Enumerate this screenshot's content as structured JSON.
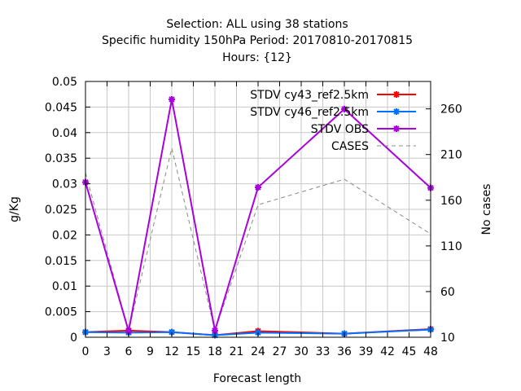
{
  "chart_data": {
    "type": "line",
    "title_lines": [
      "Selection: ALL using    38 stations",
      "Specific humidity 150hPa   Period: 20170810-20170815",
      "Hours: {12}"
    ],
    "xlabel": "Forecast length",
    "ylabel": "g/Kg",
    "y2label": "No cases",
    "xlim": [
      0,
      48
    ],
    "ylim": [
      0,
      0.05
    ],
    "y2lim": [
      10,
      290
    ],
    "x_ticks": [
      "0",
      "3",
      "6",
      "9",
      "12",
      "15",
      "18",
      "21",
      "24",
      "27",
      "30",
      "33",
      "36",
      "39",
      "42",
      "45",
      "48"
    ],
    "y_ticks": [
      "0",
      "0.005",
      "0.01",
      "0.015",
      "0.02",
      "0.025",
      "0.03",
      "0.035",
      "0.04",
      "0.045",
      "0.05"
    ],
    "y2_ticks": [
      "10",
      "60",
      "110",
      "160",
      "210",
      "260"
    ],
    "grid": true,
    "legend_position": "top-right",
    "x": [
      0,
      6,
      12,
      18,
      24,
      36,
      48
    ],
    "series": [
      {
        "name": "STDV cy43_ref2.5km",
        "axis": "y",
        "color": "#ff0000",
        "marker": "x-star",
        "dash": false,
        "values": [
          0.001,
          0.0013,
          0.001,
          0.0004,
          0.0012,
          0.0007,
          0.0016
        ]
      },
      {
        "name": "STDV cy46_ref2.5km",
        "axis": "y",
        "color": "#0070ff",
        "marker": "x-star",
        "dash": false,
        "values": [
          0.001,
          0.0009,
          0.001,
          0.0004,
          0.0009,
          0.0007,
          0.0015
        ]
      },
      {
        "name": "STDV OBS",
        "axis": "y",
        "color": "#aa00dd",
        "marker": "x-star",
        "dash": false,
        "values": [
          0.0303,
          0.0012,
          0.0465,
          0.0013,
          0.0293,
          0.0446,
          0.0292
        ]
      },
      {
        "name": "CASES",
        "axis": "y2",
        "color": "#888888",
        "marker": "none",
        "dash": true,
        "values": [
          190,
          17,
          217,
          17,
          155,
          183,
          123
        ]
      }
    ]
  }
}
